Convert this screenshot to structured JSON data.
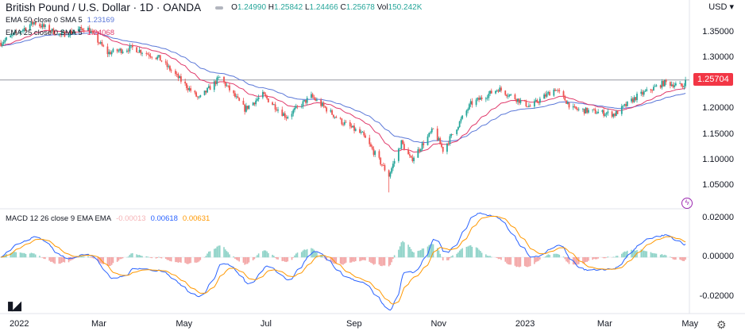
{
  "header": {
    "title": "British Pound / U.S. Dollar · 1D · OANDA",
    "open": "1.24990",
    "high": "1.25842",
    "low": "1.24466",
    "close": "1.25678",
    "volume": "150.242K",
    "o_label": "O",
    "h_label": "H",
    "l_label": "L",
    "c_label": "C",
    "vol_label": "Vol"
  },
  "legend": {
    "ema50": {
      "label": "EMA 50 close 0 SMA 5",
      "value": "1.23169"
    },
    "ema25": {
      "label": "EMA 25 close 0 SMA 5",
      "value": "1.24068"
    },
    "macd": {
      "label": "MACD 12 26 close 9 EMA EMA",
      "hist": "-0.00013",
      "macd": "0.00618",
      "signal": "0.00631"
    }
  },
  "currency": "USD",
  "last_price": "1.25704",
  "colors": {
    "up": "#26a69a",
    "down": "#ef5350",
    "ema50": "#5b78d8",
    "ema25": "#e0396a",
    "macd": "#2962ff",
    "signal": "#ff9800",
    "last": "#f23645"
  },
  "chart_data": [
    {
      "type": "candlestick",
      "symbol": "GBPUSD",
      "interval": "1D",
      "ylim": [
        1.03,
        1.37
      ],
      "y_ticks": [
        "1.35000",
        "1.30000",
        "1.25000",
        "1.20000",
        "1.15000",
        "1.10000",
        "1.05000"
      ],
      "x_ticks": [
        "2022",
        "Mar",
        "May",
        "Jul",
        "Sep",
        "Nov",
        "2023",
        "Mar",
        "May"
      ],
      "series": [
        {
          "name": "GBPUSD",
          "approx_closes": [
            [
              "2021-12-20",
              1.33
            ],
            [
              "2022-01-13",
              1.37
            ],
            [
              "2022-02-01",
              1.345
            ],
            [
              "2022-02-20",
              1.36
            ],
            [
              "2022-03-07",
              1.31
            ],
            [
              "2022-03-25",
              1.32
            ],
            [
              "2022-04-13",
              1.3
            ],
            [
              "2022-05-12",
              1.22
            ],
            [
              "2022-05-27",
              1.262
            ],
            [
              "2022-06-14",
              1.2
            ],
            [
              "2022-06-27",
              1.228
            ],
            [
              "2022-07-14",
              1.185
            ],
            [
              "2022-08-01",
              1.225
            ],
            [
              "2022-08-23",
              1.175
            ],
            [
              "2022-09-07",
              1.15
            ],
            [
              "2022-09-26",
              1.07
            ],
            [
              "2022-10-05",
              1.135
            ],
            [
              "2022-10-12",
              1.1
            ],
            [
              "2022-10-28",
              1.16
            ],
            [
              "2022-11-04",
              1.12
            ],
            [
              "2022-11-24",
              1.21
            ],
            [
              "2022-12-14",
              1.24
            ],
            [
              "2023-01-06",
              1.205
            ],
            [
              "2023-01-24",
              1.24
            ],
            [
              "2023-02-06",
              1.2
            ],
            [
              "2023-03-08",
              1.19
            ],
            [
              "2023-03-24",
              1.225
            ],
            [
              "2023-04-13",
              1.252
            ],
            [
              "2023-04-26",
              1.245
            ],
            [
              "2023-04-28",
              1.257
            ]
          ]
        },
        {
          "name": "EMA 50"
        },
        {
          "name": "EMA 25"
        }
      ]
    },
    {
      "type": "line+histogram",
      "name": "MACD 12 26 close 9",
      "ylim": [
        -0.025,
        0.022
      ],
      "y_ticks": [
        "0.02000",
        "0.00000",
        "-0.02000"
      ]
    }
  ]
}
